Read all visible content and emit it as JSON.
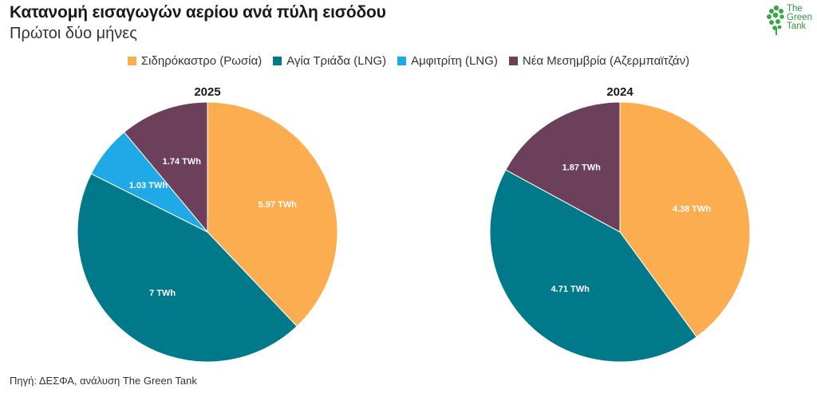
{
  "title": "Κατανομή εισαγωγών αερίου ανά πύλη εισόδου",
  "subtitle": "Πρώτοι δύο μήνες",
  "logo": {
    "line1": "The",
    "line2": "Green",
    "line3": "Tank"
  },
  "source": "Πηγή: ΔΕΣΦΑ, ανάλυση The Green Tank",
  "chart_data": [
    {
      "type": "pie",
      "title": "2025",
      "slices": [
        {
          "name": "Σιδηρόκαστρο (Ρωσία)",
          "value": 5.97,
          "label": "5.97 TWh",
          "color": "#FBAD4F"
        },
        {
          "name": "Αγία Τριάδα (LNG)",
          "value": 7,
          "label": "7 TWh",
          "color": "#007A8A"
        },
        {
          "name": "Αμφιτρίτη (LNG)",
          "value": 1.03,
          "label": "1.03 TWh",
          "color": "#1FA9E6"
        },
        {
          "name": "Νέα Μεσημβρία (Αζερμπαϊτζάν)",
          "value": 1.74,
          "label": "1.74 TWh",
          "color": "#6C3F5B"
        }
      ]
    },
    {
      "type": "pie",
      "title": "2024",
      "slices": [
        {
          "name": "Σιδηρόκαστρο (Ρωσία)",
          "value": 4.38,
          "label": "4.38 TWh",
          "color": "#FBAD4F"
        },
        {
          "name": "Αγία Τριάδα (LNG)",
          "value": 4.71,
          "label": "4.71 TWh",
          "color": "#007A8A"
        },
        {
          "name": "Νέα Μεσημβρία (Αζερμπαϊτζάν)",
          "value": 1.87,
          "label": "1.87 TWh",
          "color": "#6C3F5B"
        }
      ]
    }
  ],
  "legend": [
    {
      "label": "Σιδηρόκαστρο (Ρωσία)",
      "color": "#FBAD4F"
    },
    {
      "label": "Αγία Τριάδα (LNG)",
      "color": "#007A8A"
    },
    {
      "label": "Αμφιτρίτη (LNG)",
      "color": "#1FA9E6"
    },
    {
      "label": "Νέα Μεσημβρία (Αζερμπαϊτζάν)",
      "color": "#6C3F5B"
    }
  ]
}
